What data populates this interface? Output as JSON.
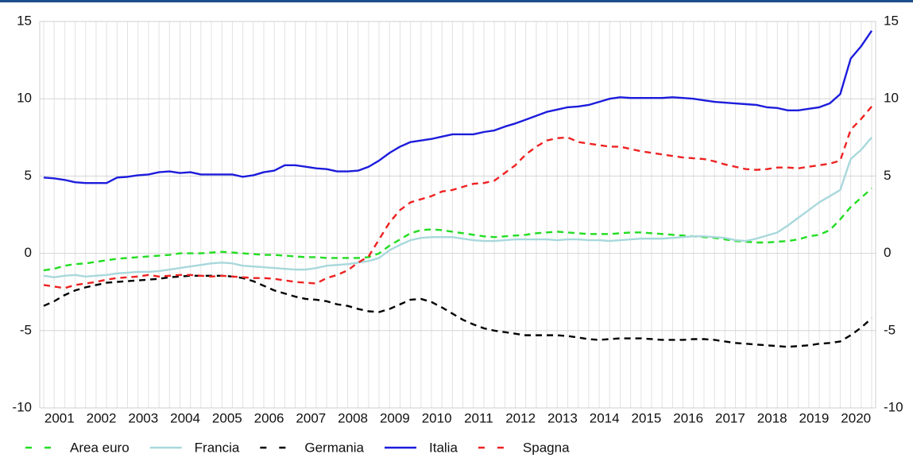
{
  "chart_data": {
    "type": "line",
    "categories": [
      null,
      "2001",
      null,
      null,
      null,
      "2002",
      null,
      null,
      null,
      "2003",
      null,
      null,
      null,
      "2004",
      null,
      null,
      null,
      "2005",
      null,
      null,
      null,
      "2006",
      null,
      null,
      null,
      "2007",
      null,
      null,
      null,
      "2008",
      null,
      null,
      null,
      "2009",
      null,
      null,
      null,
      "2010",
      null,
      null,
      null,
      "2011",
      null,
      null,
      null,
      "2012",
      null,
      null,
      null,
      "2013",
      null,
      null,
      null,
      "2014",
      null,
      null,
      null,
      "2015",
      null,
      null,
      null,
      "2016",
      null,
      null,
      null,
      "2017",
      null,
      null,
      null,
      "2018",
      null,
      null,
      null,
      "2019",
      null,
      null,
      null,
      "2020",
      null,
      null
    ],
    "series": [
      {
        "name": "Area euro",
        "color": "#22dd22",
        "dashed": true,
        "values": [
          -1.1,
          -1.0,
          -0.8,
          -0.7,
          -0.65,
          -0.55,
          -0.45,
          -0.35,
          -0.3,
          -0.25,
          -0.2,
          -0.15,
          -0.1,
          0.0,
          0.0,
          0.0,
          0.05,
          0.1,
          0.05,
          0.0,
          -0.05,
          -0.1,
          -0.1,
          -0.15,
          -0.2,
          -0.25,
          -0.25,
          -0.3,
          -0.3,
          -0.3,
          -0.3,
          -0.25,
          0.0,
          0.5,
          0.9,
          1.3,
          1.5,
          1.55,
          1.5,
          1.4,
          1.3,
          1.2,
          1.1,
          1.05,
          1.1,
          1.15,
          1.2,
          1.3,
          1.35,
          1.4,
          1.35,
          1.3,
          1.25,
          1.25,
          1.25,
          1.3,
          1.35,
          1.35,
          1.3,
          1.25,
          1.2,
          1.15,
          1.1,
          1.05,
          1.0,
          0.9,
          0.8,
          0.75,
          0.7,
          0.7,
          0.75,
          0.8,
          0.9,
          1.1,
          1.2,
          1.5,
          2.2,
          3.0,
          3.6,
          4.2
        ]
      },
      {
        "name": "Francia",
        "color": "#a8d8dc",
        "dashed": false,
        "values": [
          -1.45,
          -1.55,
          -1.45,
          -1.4,
          -1.5,
          -1.45,
          -1.4,
          -1.3,
          -1.25,
          -1.2,
          -1.2,
          -1.15,
          -1.05,
          -0.95,
          -0.85,
          -0.75,
          -0.65,
          -0.6,
          -0.65,
          -0.8,
          -0.85,
          -0.9,
          -0.95,
          -1.0,
          -1.05,
          -1.05,
          -0.95,
          -0.8,
          -0.75,
          -0.7,
          -0.6,
          -0.5,
          -0.3,
          0.2,
          0.55,
          0.85,
          1.0,
          1.05,
          1.05,
          1.05,
          0.95,
          0.85,
          0.8,
          0.8,
          0.85,
          0.9,
          0.9,
          0.9,
          0.9,
          0.85,
          0.9,
          0.9,
          0.85,
          0.85,
          0.8,
          0.85,
          0.9,
          0.95,
          0.95,
          0.95,
          1.0,
          1.05,
          1.1,
          1.1,
          1.05,
          1.0,
          0.85,
          0.8,
          0.95,
          1.15,
          1.35,
          1.8,
          2.3,
          2.8,
          3.3,
          3.7,
          4.1,
          6.1,
          6.7,
          7.5
        ]
      },
      {
        "name": "Germania",
        "color": "#000000",
        "dashed": true,
        "values": [
          -3.4,
          -3.1,
          -2.7,
          -2.4,
          -2.2,
          -2.05,
          -1.9,
          -1.85,
          -1.8,
          -1.75,
          -1.7,
          -1.65,
          -1.55,
          -1.5,
          -1.45,
          -1.45,
          -1.45,
          -1.45,
          -1.5,
          -1.6,
          -1.8,
          -2.1,
          -2.4,
          -2.6,
          -2.8,
          -2.95,
          -3.0,
          -3.1,
          -3.3,
          -3.4,
          -3.6,
          -3.75,
          -3.8,
          -3.6,
          -3.3,
          -3.0,
          -2.95,
          -3.15,
          -3.5,
          -3.9,
          -4.3,
          -4.6,
          -4.85,
          -5.0,
          -5.1,
          -5.2,
          -5.3,
          -5.3,
          -5.3,
          -5.3,
          -5.35,
          -5.45,
          -5.55,
          -5.6,
          -5.55,
          -5.5,
          -5.5,
          -5.5,
          -5.55,
          -5.6,
          -5.6,
          -5.6,
          -5.55,
          -5.55,
          -5.6,
          -5.7,
          -5.8,
          -5.85,
          -5.9,
          -5.95,
          -6.0,
          -6.05,
          -6.0,
          -5.95,
          -5.85,
          -5.8,
          -5.7,
          -5.3,
          -4.8,
          -4.2
        ]
      },
      {
        "name": "Italia",
        "color": "#1c1cdc",
        "dashed": false,
        "values": [
          4.9,
          4.85,
          4.75,
          4.6,
          4.55,
          4.55,
          4.55,
          4.9,
          4.95,
          5.05,
          5.1,
          5.25,
          5.3,
          5.2,
          5.25,
          5.1,
          5.1,
          5.1,
          5.1,
          4.95,
          5.05,
          5.25,
          5.35,
          5.7,
          5.7,
          5.6,
          5.5,
          5.45,
          5.3,
          5.3,
          5.35,
          5.6,
          6.0,
          6.5,
          6.9,
          7.2,
          7.3,
          7.4,
          7.55,
          7.7,
          7.7,
          7.7,
          7.85,
          7.95,
          8.2,
          8.4,
          8.65,
          8.9,
          9.15,
          9.3,
          9.45,
          9.5,
          9.6,
          9.8,
          10.0,
          10.1,
          10.05,
          10.05,
          10.05,
          10.05,
          10.1,
          10.05,
          10.0,
          9.9,
          9.8,
          9.75,
          9.7,
          9.65,
          9.6,
          9.45,
          9.4,
          9.25,
          9.25,
          9.35,
          9.45,
          9.7,
          10.3,
          12.6,
          13.4,
          14.4
        ]
      },
      {
        "name": "Spagna",
        "color": "#ee2222",
        "dashed": true,
        "values": [
          -2.05,
          -2.15,
          -2.25,
          -2.05,
          -1.95,
          -1.85,
          -1.7,
          -1.6,
          -1.55,
          -1.5,
          -1.4,
          -1.5,
          -1.45,
          -1.4,
          -1.4,
          -1.45,
          -1.5,
          -1.45,
          -1.5,
          -1.55,
          -1.6,
          -1.6,
          -1.65,
          -1.75,
          -1.85,
          -1.9,
          -1.95,
          -1.6,
          -1.4,
          -1.1,
          -0.6,
          -0.2,
          0.9,
          2.0,
          2.8,
          3.3,
          3.5,
          3.7,
          4.0,
          4.1,
          4.3,
          4.5,
          4.55,
          4.7,
          5.2,
          5.7,
          6.4,
          6.9,
          7.3,
          7.45,
          7.5,
          7.2,
          7.1,
          7.0,
          6.9,
          6.9,
          6.75,
          6.6,
          6.5,
          6.4,
          6.3,
          6.2,
          6.15,
          6.1,
          5.95,
          5.75,
          5.6,
          5.45,
          5.4,
          5.45,
          5.55,
          5.55,
          5.5,
          5.6,
          5.7,
          5.8,
          6.0,
          8.0,
          8.7,
          9.5
        ]
      }
    ],
    "ylim": [
      -10,
      15
    ],
    "yticks": [
      -10,
      -5,
      0,
      5,
      10,
      15
    ],
    "grid": true
  }
}
